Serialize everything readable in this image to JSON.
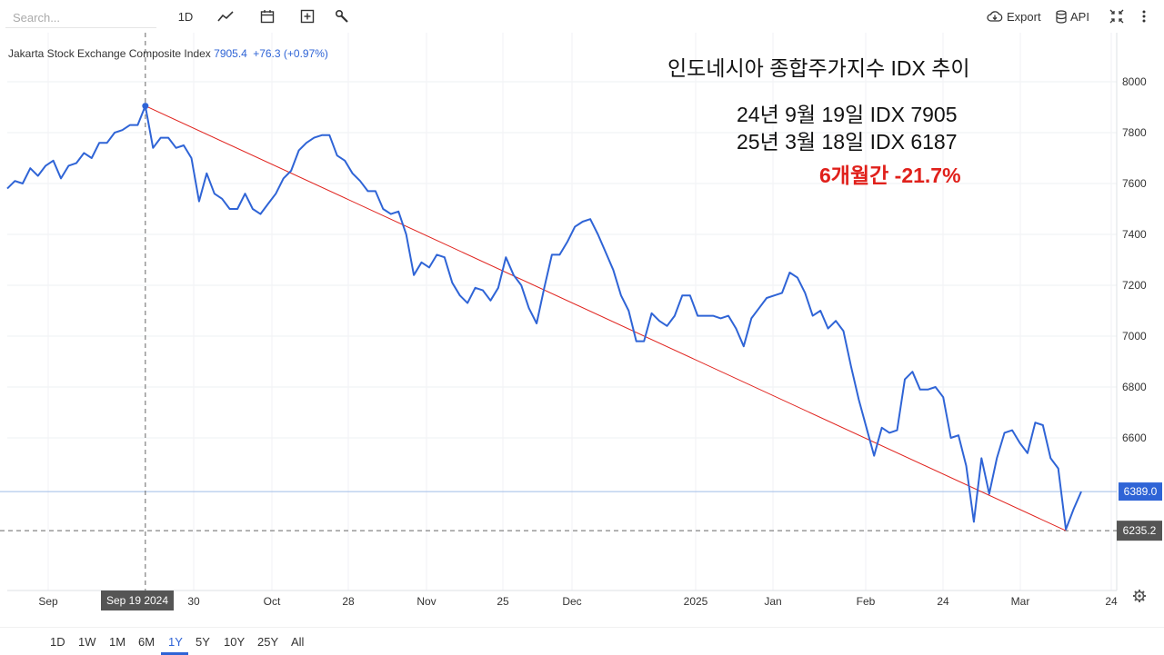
{
  "toolbar": {
    "search_placeholder": "Search...",
    "interval": "1D",
    "export_label": "Export",
    "api_label": "API"
  },
  "header": {
    "name": "Jakarta Stock Exchange Composite Index",
    "last": "7905.4",
    "change": "+76.3 (+0.97%)"
  },
  "annotations": {
    "title": "인도네시아  종합주가지수 IDX 추이",
    "line1": "24년 9월 19일 IDX 7905",
    "line2": "25년 3월 18일 IDX 6187",
    "line3": "6개월간 -21.7%"
  },
  "labels": {
    "current_price": "6389.0",
    "crosshair_price": "6235.2",
    "crosshair_date": "Sep 19 2024"
  },
  "range_buttons": [
    "1D",
    "1W",
    "1M",
    "6M",
    "1Y",
    "5Y",
    "10Y",
    "25Y",
    "All"
  ],
  "active_range": "1Y",
  "colors": {
    "line": "#2f64d6",
    "trend": "#e0201b",
    "accent": "#2f64d6"
  },
  "chart_data": {
    "type": "line",
    "ylim": [
      6200,
      8000
    ],
    "y_ticks": [
      6600,
      6800,
      7000,
      7200,
      7400,
      7600,
      7800,
      8000
    ],
    "x_ticks": [
      "Sep",
      "30",
      "Oct",
      "28",
      "Nov",
      "25",
      "Dec",
      "2025",
      "Jan",
      "Feb",
      "24",
      "Mar",
      "24"
    ],
    "grid": true,
    "series": [
      {
        "values": [
          7580,
          7610,
          7600,
          7660,
          7630,
          7670,
          7690,
          7620,
          7670,
          7680,
          7720,
          7700,
          7760,
          7760,
          7800,
          7810,
          7830,
          7830,
          7905,
          7740,
          7780,
          7780,
          7740,
          7750,
          7700,
          7530,
          7640,
          7560,
          7540,
          7500,
          7500,
          7560,
          7500,
          7480,
          7520,
          7560,
          7620,
          7650,
          7730,
          7760,
          7780,
          7790,
          7790,
          7710,
          7690,
          7640,
          7610,
          7570,
          7570,
          7500,
          7480,
          7490,
          7400,
          7240,
          7290,
          7270,
          7320,
          7310,
          7210,
          7160,
          7130,
          7190,
          7180,
          7140,
          7190,
          7310,
          7240,
          7200,
          7110,
          7050,
          7190,
          7320,
          7320,
          7370,
          7430,
          7450,
          7460,
          7400,
          7330,
          7260,
          7160,
          7100,
          6980,
          6980,
          7090,
          7060,
          7040,
          7080,
          7160,
          7160,
          7080,
          7080,
          7080,
          7070,
          7080,
          7030,
          6960,
          7070,
          7110,
          7150,
          7160,
          7170,
          7250,
          7230,
          7170,
          7080,
          7100,
          7030,
          7060,
          7020,
          6880,
          6750,
          6640,
          6530,
          6640,
          6620,
          6630,
          6830,
          6860,
          6790,
          6790,
          6800,
          6760,
          6600,
          6610,
          6490,
          6270,
          6520,
          6380,
          6520,
          6620,
          6630,
          6580,
          6540,
          6660,
          6650,
          6520,
          6480,
          6240,
          6320,
          6389
        ]
      },
      {
        "values": [
          7905,
          6235
        ]
      }
    ]
  }
}
